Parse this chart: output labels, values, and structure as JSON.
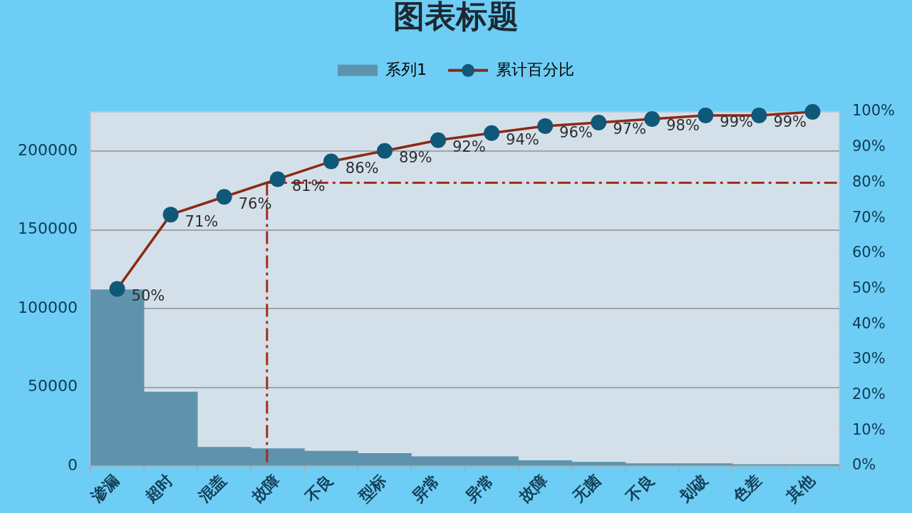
{
  "chart_data": {
    "type": "bar",
    "title": "图表标题",
    "categories": [
      "渗漏",
      "超时",
      "混盖",
      "故障",
      "不良",
      "型标",
      "异常",
      "异常",
      "故障",
      "无菌",
      "不良",
      "划破",
      "色差",
      "其他"
    ],
    "series": [
      {
        "name": "系列1",
        "color": "#5f93ad",
        "values": [
          112000,
          47000,
          12000,
          11000,
          9500,
          8000,
          6000,
          6000,
          3500,
          2500,
          1500,
          1500,
          1000,
          1000
        ]
      },
      {
        "name": "累计百分比",
        "type": "line",
        "axis": "y2",
        "color": "#8b2a14",
        "colors": [
          "#0f5878",
          "#0f5878",
          "#0f5878",
          "#0f5878",
          "#0f5878",
          "#0f5878",
          "#0f5878",
          "#0f5878",
          "#0f5878",
          "#0f5878",
          "#0f5878",
          "#0f5878",
          "#0f5878",
          "#0f5878"
        ],
        "values": [
          50,
          71,
          76,
          81,
          86,
          89,
          92,
          94,
          96,
          97,
          98,
          99,
          99,
          100
        ],
        "value_labels": [
          "50%",
          "71%",
          "76%",
          "81%",
          "86%",
          "89%",
          "92%",
          "94%",
          "96%",
          "97%",
          "98%",
          "99%",
          "99%",
          null
        ]
      }
    ],
    "ylim": [
      0,
      225000
    ],
    "yticks": [
      0,
      50000,
      100000,
      150000,
      200000
    ],
    "y2lim": [
      0,
      100
    ],
    "y2ticks": [
      {
        "value": 0,
        "label": "0%"
      },
      {
        "value": 10,
        "label": "10%"
      },
      {
        "value": 20,
        "label": "20%"
      },
      {
        "value": 30,
        "label": "30%"
      },
      {
        "value": 40,
        "label": "40%"
      },
      {
        "value": 50,
        "label": "50%"
      },
      {
        "value": 60,
        "label": "60%"
      },
      {
        "value": 70,
        "label": "70%"
      },
      {
        "value": 80,
        "label": "80%"
      },
      {
        "value": 90,
        "label": "90%"
      },
      {
        "value": 100,
        "label": "100%"
      }
    ],
    "ref_lines": [
      {
        "axis": "y2",
        "value": 80,
        "color": "#a0301c",
        "line_style": "dashed"
      }
    ],
    "grid": "y",
    "legend": "top",
    "marker": "circle"
  }
}
